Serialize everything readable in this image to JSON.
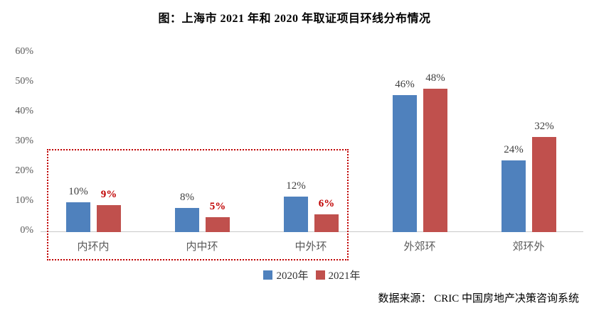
{
  "chart_data": {
    "type": "bar",
    "title": "图：上海市 2021 年和 2020 年取证项目环线分布情况",
    "categories": [
      "内环内",
      "内中环",
      "中外环",
      "外郊环",
      "郊环外"
    ],
    "series": [
      {
        "name": "2020年",
        "color": "#4F81BD",
        "values": [
          10,
          8,
          12,
          46,
          24
        ]
      },
      {
        "name": "2021年",
        "color": "#C0504D",
        "values": [
          9,
          5,
          6,
          48,
          32
        ]
      }
    ],
    "unit": "%",
    "ylim": [
      0,
      60
    ],
    "yticks": [
      "0%",
      "10%",
      "20%",
      "30%",
      "40%",
      "50%",
      "60%"
    ],
    "grid": false,
    "data_labels": true,
    "legend_position": "bottom",
    "highlight_box": {
      "series": "2021年",
      "categories": [
        "内环内",
        "内中环",
        "中外环"
      ],
      "border_color": "#C00000",
      "label_color": "#C00000"
    },
    "source": "数据来源：  CRIC 中国房地产决策咨询系统",
    "axis_text_color": "#595959",
    "label_text_color": "#3F3F3F",
    "baseline_color": "#C9C9C9"
  }
}
